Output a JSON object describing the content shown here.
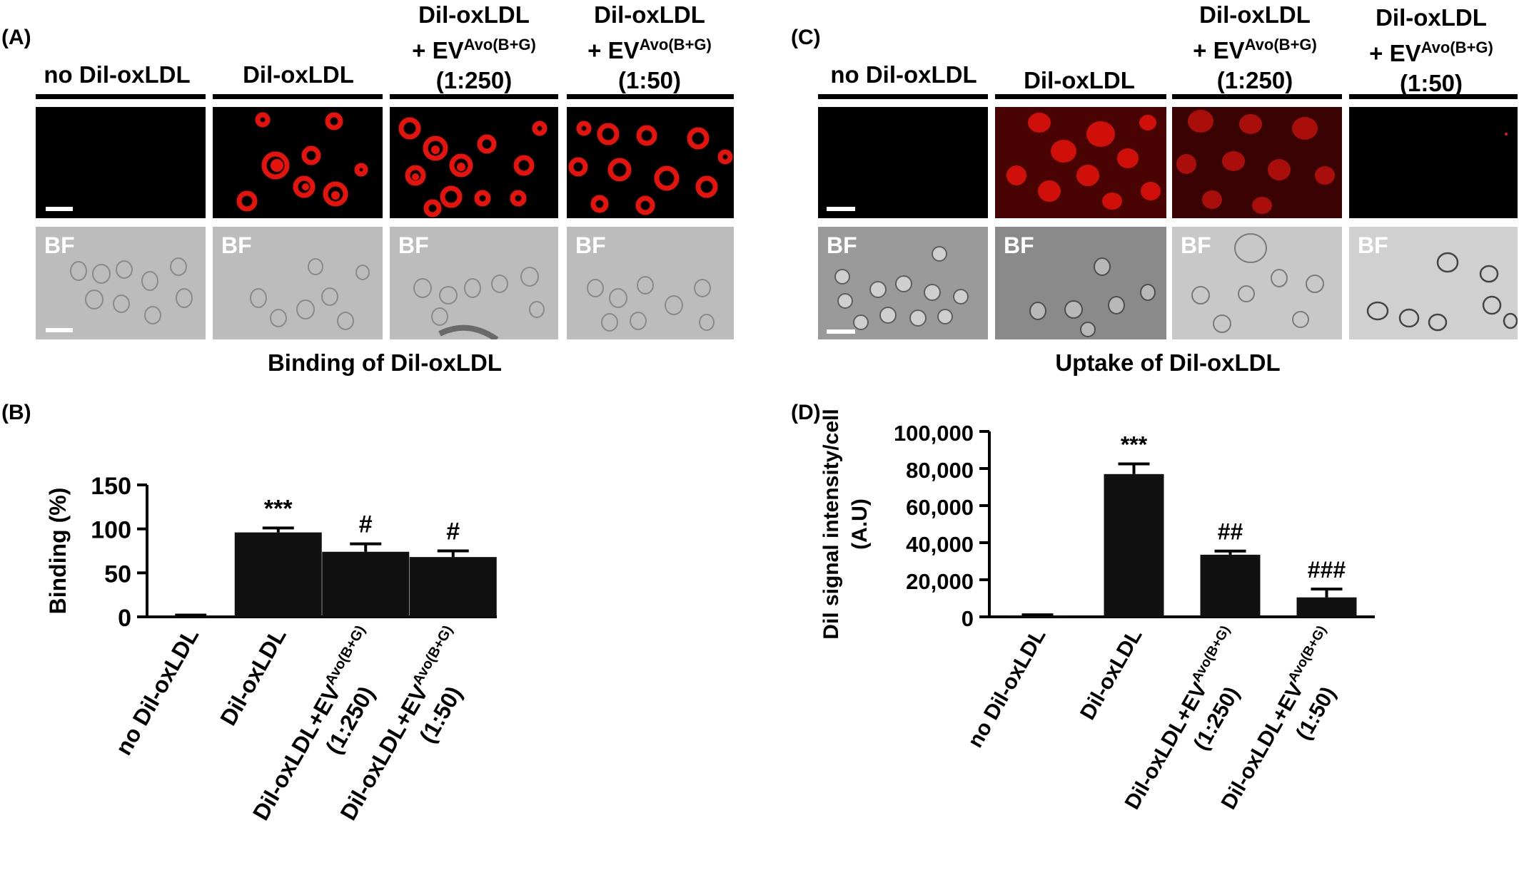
{
  "panel_a": {
    "label": "(A)",
    "columns": [
      {
        "line1": "no Dil-oxLDL",
        "line2": "",
        "sup": "",
        "line3": ""
      },
      {
        "line1": "Dil-oxLDL",
        "line2": "",
        "sup": "",
        "line3": ""
      },
      {
        "line1": "Dil-oxLDL",
        "line2": "+ EV",
        "sup": "Avo(B+G)",
        "line3": "(1:250)"
      },
      {
        "line1": "Dil-oxLDL",
        "line2": "+ EV",
        "sup": "Avo(B+G)",
        "line3": "(1:50)"
      }
    ],
    "bf_label": "BF",
    "caption": "Binding of Dil-oxLDL"
  },
  "panel_c": {
    "label": "(C)",
    "columns": [
      {
        "line1": "no Dil-oxLDL",
        "line2": "",
        "sup": "",
        "line3": ""
      },
      {
        "line1": "Dil-oxLDL",
        "line2": "",
        "sup": "",
        "line3": ""
      },
      {
        "line1": "Dil-oxLDL",
        "line2": "+ EV",
        "sup": "Avo(B+G)",
        "line3": "(1:250)"
      },
      {
        "line1": "Dil-oxLDL",
        "line2": "+ EV",
        "sup": "Avo(B+G)",
        "line3": "(1:50)"
      }
    ],
    "bf_label": "BF",
    "caption": "Uptake of Dil-oxLDL"
  },
  "colors": {
    "fluorescence": "#e8120c",
    "bars": "#111111",
    "brightfield": "#bcbcbc"
  },
  "chart_data": [
    {
      "panel": "(B)",
      "type": "bar",
      "ylabel": "Binding (%)",
      "ylim": [
        0,
        150
      ],
      "yticks": [
        0,
        50,
        100,
        150
      ],
      "categories": [
        {
          "line1": "no Dil-oxLDL",
          "sup": "",
          "line2": ""
        },
        {
          "line1": "Dil-oxLDL",
          "sup": "",
          "line2": ""
        },
        {
          "line1": "Dil-oxLDL+EV",
          "sup": "Avo(B+G)",
          "line2": "(1:250)"
        },
        {
          "line1": "Dil-oxLDL+EV",
          "sup": "Avo(B+G)",
          "line2": "(1:50)"
        }
      ],
      "values": [
        1.5,
        96,
        74,
        68
      ],
      "errors": [
        0.5,
        5,
        9,
        7
      ],
      "annotations": [
        "",
        "***",
        "#",
        "#"
      ]
    },
    {
      "panel": "(D)",
      "type": "bar",
      "ylabel": "Dil signal intensity/cell",
      "ylabel2": "(A.U)",
      "ylim": [
        0,
        100000
      ],
      "yticks": [
        "0",
        "20,000",
        "40,000",
        "60,000",
        "80,000",
        "100,000"
      ],
      "categories": [
        {
          "line1": "no Dil-oxLDL",
          "sup": "",
          "line2": ""
        },
        {
          "line1": "Dil-oxLDL",
          "sup": "",
          "line2": ""
        },
        {
          "line1": "Dil-oxLDL+EV",
          "sup": "Avo(B+G)",
          "line2": "(1:250)"
        },
        {
          "line1": "Dil-oxLDL+EV",
          "sup": "Avo(B+G)",
          "line2": "(1:50)"
        }
      ],
      "values": [
        800,
        77000,
        33500,
        10500
      ],
      "errors": [
        300,
        5500,
        2000,
        4500
      ],
      "annotations": [
        "",
        "***",
        "##",
        "###"
      ]
    }
  ]
}
